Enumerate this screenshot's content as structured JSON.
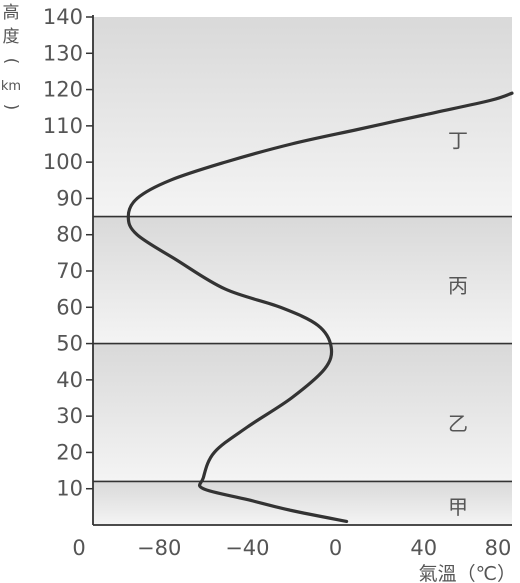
{
  "chart_data": {
    "type": "line",
    "ylabel_chars": [
      "高",
      "度",
      "(",
      "km",
      ")"
    ],
    "xlabel": "氣溫（℃）",
    "xlim": [
      -110,
      80
    ],
    "ylim": [
      0,
      140
    ],
    "x_ticks": [
      "−80",
      "−40",
      "0",
      "40",
      "80"
    ],
    "x_tick_values": [
      -80,
      -40,
      0,
      40,
      80
    ],
    "x_origin_label": "0",
    "y_ticks": [
      "10",
      "20",
      "30",
      "40",
      "50",
      "60",
      "70",
      "80",
      "90",
      "100",
      "110",
      "120",
      "130",
      "140"
    ],
    "y_tick_values": [
      10,
      20,
      30,
      40,
      50,
      60,
      70,
      80,
      90,
      100,
      110,
      120,
      130,
      140
    ],
    "layer_boundaries": [
      12,
      50,
      85
    ],
    "layers": [
      {
        "label": "甲",
        "y_center": 5
      },
      {
        "label": "乙",
        "y_center": 28
      },
      {
        "label": "丙",
        "y_center": 66
      },
      {
        "label": "丁",
        "y_center": 106
      }
    ],
    "series": [
      {
        "x": [
          5,
          -20,
          -40,
          -60,
          -60,
          -55,
          -40,
          -20,
          -5,
          -2,
          -8,
          -25,
          -50,
          -72,
          -90,
          -94,
          -90,
          -75,
          -50,
          -20,
          10,
          40,
          70,
          80
        ],
        "y": [
          1,
          4,
          7,
          10,
          13,
          20,
          27,
          35,
          43,
          49,
          55,
          60,
          65,
          73,
          80,
          85,
          90,
          95,
          100,
          105,
          109,
          113,
          117,
          119
        ]
      }
    ],
    "colors": {
      "line": "#333333",
      "band_top": "#d9d9d9",
      "band_bottom": "#f4f4f4",
      "axis": "#333333"
    }
  }
}
